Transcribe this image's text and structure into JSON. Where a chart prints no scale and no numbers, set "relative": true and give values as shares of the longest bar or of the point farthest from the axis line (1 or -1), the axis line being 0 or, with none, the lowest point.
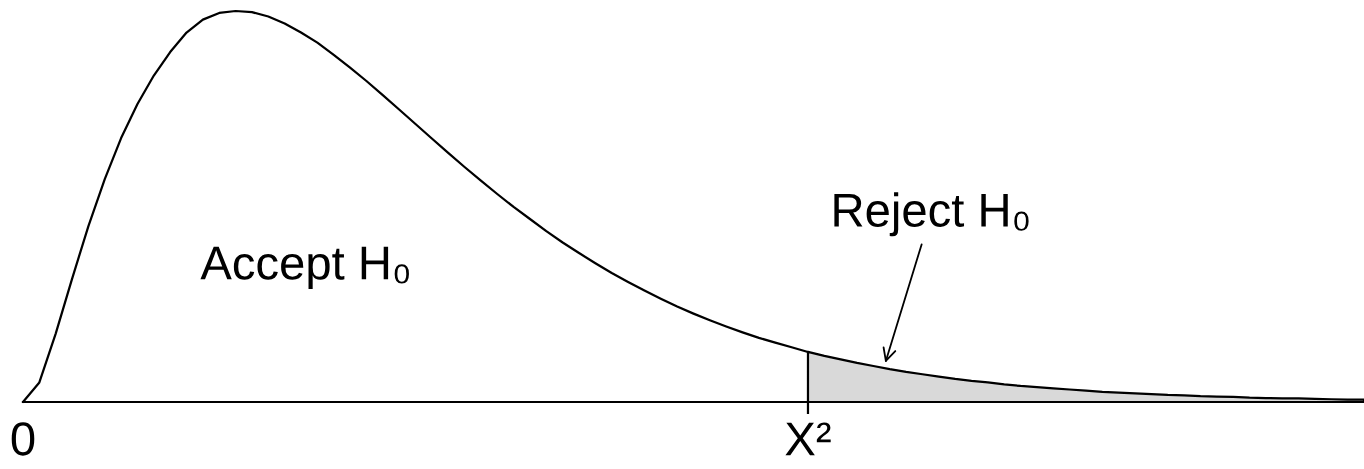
{
  "chart_data": {
    "type": "line",
    "relative": true,
    "categories": [
      "0",
      null,
      null,
      null,
      null,
      null,
      null,
      null,
      null,
      null,
      null,
      null,
      null,
      null,
      null,
      null,
      null,
      null,
      null,
      null,
      null,
      null,
      null,
      null,
      null,
      null,
      null,
      null,
      null,
      null,
      null,
      null,
      null,
      null,
      null,
      null,
      null,
      null,
      null,
      null,
      null,
      null,
      null,
      null,
      null,
      null,
      null,
      null,
      "X²",
      null,
      null,
      null,
      null,
      null,
      null,
      null,
      null,
      null,
      null,
      null,
      null,
      null,
      null,
      null,
      null,
      null,
      null,
      null,
      null,
      null,
      null,
      null,
      null,
      null,
      null,
      null,
      null,
      null,
      null,
      null,
      null,
      null,
      null
    ],
    "series": [
      {
        "color": "#000000",
        "values": [
          0,
          0.05,
          0.175,
          0.315,
          0.45,
          0.57,
          0.675,
          0.762,
          0.835,
          0.895,
          0.945,
          0.978,
          0.995,
          1,
          0.997,
          0.986,
          0.968,
          0.945,
          0.919,
          0.888,
          0.855,
          0.821,
          0.785,
          0.748,
          0.711,
          0.674,
          0.637,
          0.601,
          0.566,
          0.532,
          0.499,
          0.468,
          0.437,
          0.408,
          0.381,
          0.355,
          0.33,
          0.307,
          0.285,
          0.264,
          0.244,
          0.226,
          0.209,
          0.193,
          0.178,
          0.164,
          0.152,
          0.14,
          0.128,
          null,
          null,
          null,
          null,
          null,
          null,
          null,
          null,
          null,
          null,
          null,
          null,
          null,
          null,
          null,
          null,
          null,
          null,
          null,
          null,
          null,
          null,
          null,
          null,
          null,
          null,
          null,
          null,
          null,
          null,
          null,
          null,
          null,
          null
        ]
      },
      {
        "type": "area",
        "color": "#d9d9d9",
        "values": [
          null,
          null,
          null,
          null,
          null,
          null,
          null,
          null,
          null,
          null,
          null,
          null,
          null,
          null,
          null,
          null,
          null,
          null,
          null,
          null,
          null,
          null,
          null,
          null,
          null,
          null,
          null,
          null,
          null,
          null,
          null,
          null,
          null,
          null,
          null,
          null,
          null,
          null,
          null,
          null,
          null,
          null,
          null,
          null,
          null,
          null,
          null,
          null,
          0.128,
          0.118,
          0.109,
          0.1,
          0.092,
          0.084,
          0.077,
          0.071,
          0.065,
          0.059,
          0.054,
          0.05,
          0.045,
          0.041,
          0.038,
          0.035,
          0.032,
          0.029,
          0.026,
          0.024,
          0.022,
          0.02,
          0.018,
          0.017,
          0.015,
          0.014,
          0.013,
          0.011,
          0.01,
          0.009,
          0.009,
          0.008,
          0.007,
          0.006,
          0.006
        ]
      }
    ],
    "annotations": [
      "Accept H₀",
      "Reject H₀"
    ]
  }
}
